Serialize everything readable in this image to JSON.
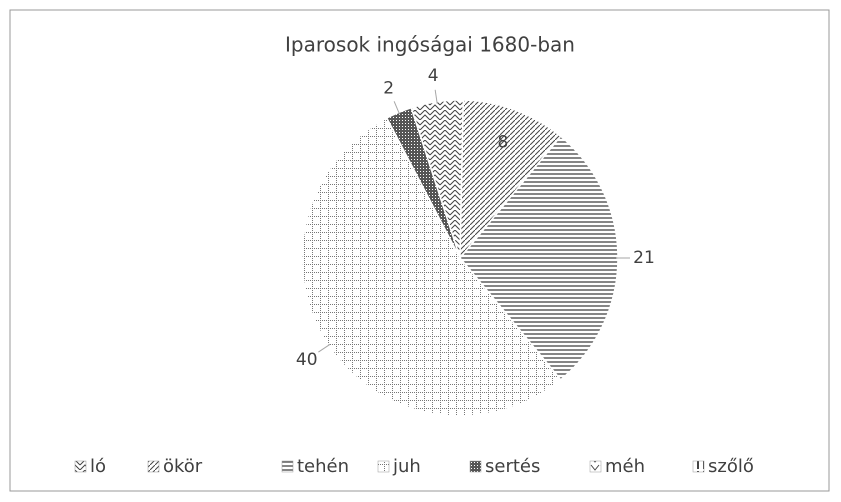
{
  "chart_data": {
    "type": "pie",
    "title": "Iparosok ingóságai 1680-ban",
    "categories": [
      "ló",
      "ökör",
      "tehén",
      "juh",
      "sertés",
      "méh",
      "szőlő"
    ],
    "values": [
      4,
      8,
      21,
      40,
      2,
      0,
      0
    ],
    "legend": "bottom"
  }
}
